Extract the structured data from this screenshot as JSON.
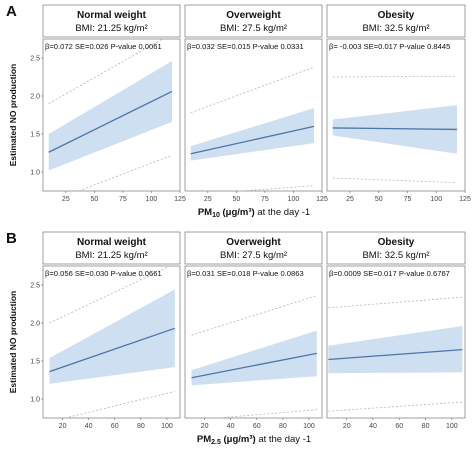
{
  "figure_panels": [
    {
      "letter": "A",
      "ylabel": "Estimated NO production",
      "xlabel_main": "PM",
      "xlabel_sub": "10",
      "xlabel_unit": " (μg/m³)",
      "xlabel_tail": " at the day -1"
    },
    {
      "letter": "B",
      "ylabel": "Estimated NO production",
      "xlabel_main": "PM",
      "xlabel_sub": "2.5",
      "xlabel_unit": " (μg/m³)",
      "xlabel_tail": " at the day -1"
    }
  ],
  "chart_data": [
    {
      "type": "line",
      "panel": "A",
      "xlim": [
        5,
        125
      ],
      "ylim": [
        0.75,
        2.75
      ],
      "xticks": [
        25,
        50,
        75,
        100,
        125
      ],
      "yticks": [
        1.0,
        1.5,
        2.0,
        2.5
      ],
      "facets": [
        {
          "title": "Normal weight",
          "bmi": "BMI: 21.25 kg/m²",
          "stat": "β=0.072  SE=0.026  P-value 0.0061",
          "x": [
            10,
            118
          ],
          "fit": [
            1.26,
            2.06
          ],
          "ci_lower": [
            1.02,
            1.66
          ],
          "ci_upper": [
            1.5,
            2.46
          ],
          "pi_lower": [
            0.6,
            1.22
          ],
          "pi_upper": [
            1.9,
            2.82
          ]
        },
        {
          "title": "Overweight",
          "bmi": "BMI: 27.5 kg/m²",
          "stat": "β=0.032  SE=0.015  P-value 0.0331",
          "x": [
            10,
            118
          ],
          "fit": [
            1.24,
            1.6
          ],
          "ci_lower": [
            1.15,
            1.38
          ],
          "ci_upper": [
            1.34,
            1.84
          ],
          "pi_lower": [
            0.7,
            0.82
          ],
          "pi_upper": [
            1.78,
            2.38
          ]
        },
        {
          "title": "Obesity",
          "bmi": "BMI:  32.5 kg/m²",
          "stat": "β= -0.003  SE=0.017  P-value 0.8445",
          "x": [
            10,
            118
          ],
          "fit": [
            1.58,
            1.56
          ],
          "ci_lower": [
            1.48,
            1.24
          ],
          "ci_upper": [
            1.69,
            1.88
          ],
          "pi_lower": [
            0.92,
            0.86
          ],
          "pi_upper": [
            2.25,
            2.26
          ]
        }
      ]
    },
    {
      "type": "line",
      "panel": "B",
      "xlim": [
        5,
        110
      ],
      "ylim": [
        0.75,
        2.75
      ],
      "xticks": [
        20,
        40,
        60,
        80,
        100
      ],
      "yticks": [
        1.0,
        1.5,
        2.0,
        2.5
      ],
      "facets": [
        {
          "title": "Normal weight",
          "bmi": "BMI: 21.25 kg/m²",
          "stat": "β=0.056  SE=0.030  P-value 0.0661",
          "x": [
            10,
            106
          ],
          "fit": [
            1.36,
            1.93
          ],
          "ci_lower": [
            1.2,
            1.42
          ],
          "ci_upper": [
            1.54,
            2.44
          ],
          "pi_lower": [
            0.7,
            1.1
          ],
          "pi_upper": [
            2.0,
            2.78
          ]
        },
        {
          "title": "Overweight",
          "bmi": "BMI: 27.5 kg/m²",
          "stat": "β=0.031  SE=0.018  P-value 0.0863",
          "x": [
            10,
            106
          ],
          "fit": [
            1.28,
            1.6
          ],
          "ci_lower": [
            1.18,
            1.3
          ],
          "ci_upper": [
            1.38,
            1.9
          ],
          "pi_lower": [
            0.72,
            0.86
          ],
          "pi_upper": [
            1.84,
            2.36
          ]
        },
        {
          "title": "Obesity",
          "bmi": "BMI:  32.5 kg/m²",
          "stat": "β=0.0009  SE=0.017  P-value 0.6767",
          "x": [
            6,
            108
          ],
          "fit": [
            1.52,
            1.65
          ],
          "ci_lower": [
            1.34,
            1.35
          ],
          "ci_upper": [
            1.7,
            1.96
          ],
          "pi_lower": [
            0.84,
            0.96
          ],
          "pi_upper": [
            2.2,
            2.34
          ]
        }
      ]
    }
  ]
}
